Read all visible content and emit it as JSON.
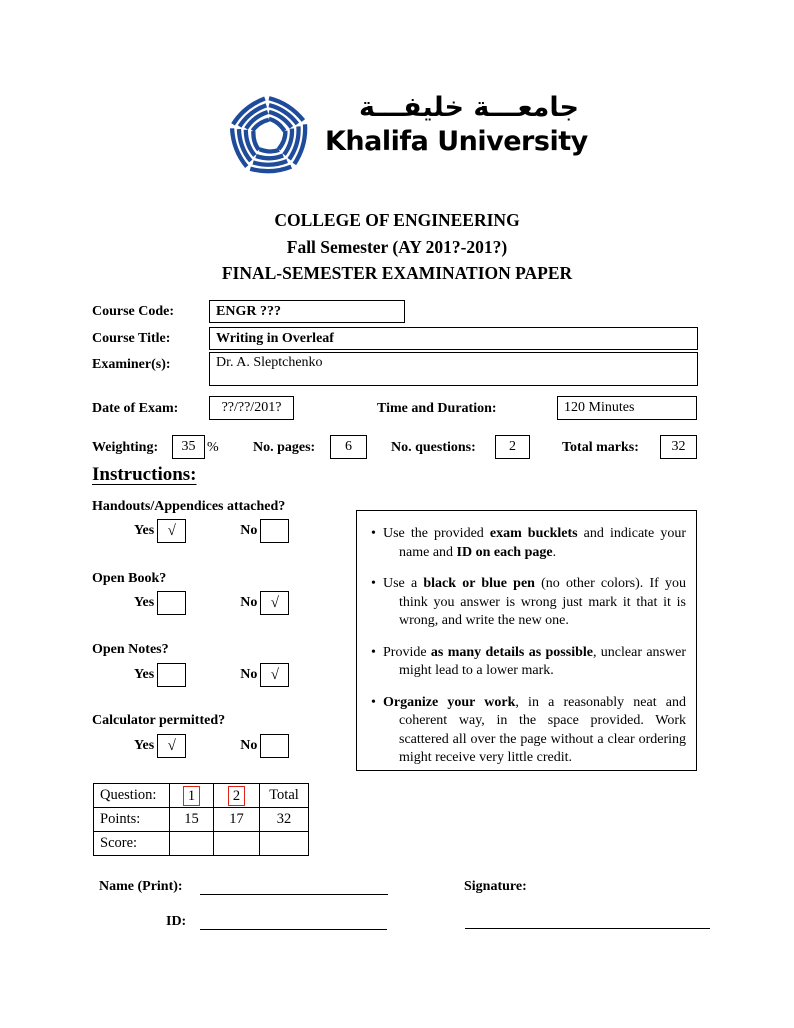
{
  "logo": {
    "arabic": "جامعـــة خليفـــة",
    "english": "Khalifa University",
    "mark_color": "#1e4c9a"
  },
  "title": {
    "line1": "COLLEGE OF ENGINEERING",
    "line2": "Fall Semester (AY 201?-201?)",
    "line3": "FINAL-SEMESTER EXAMINATION PAPER"
  },
  "course": {
    "code_label": "Course Code:",
    "code_value": "ENGR ???",
    "title_label": "Course Title:",
    "title_value": "Writing in Overleaf",
    "examiner_label": "Examiner(s):",
    "examiner_value": "Dr. A. Sleptchenko"
  },
  "exam_info": {
    "date_label": "Date of Exam:",
    "date_value": "??/??/201?",
    "time_label": "Time and Duration:",
    "time_value": "120 Minutes",
    "weighting_label": "Weighting:",
    "weighting_value": "35",
    "weighting_unit": "%",
    "pages_label": "No. pages:",
    "pages_value": "6",
    "questions_label": "No. questions:",
    "questions_value": "2",
    "marks_label": "Total marks:",
    "marks_value": "32"
  },
  "instructions": {
    "heading": "Instructions:",
    "yes_label": "Yes",
    "no_label": "No",
    "questions": [
      {
        "label": "Handouts/Appendices attached?",
        "yes_mark": "√",
        "no_mark": ""
      },
      {
        "label": "Open Book?",
        "yes_mark": "",
        "no_mark": "√"
      },
      {
        "label": "Open Notes?",
        "yes_mark": "",
        "no_mark": "√"
      },
      {
        "label": "Calculator permitted?",
        "yes_mark": "√",
        "no_mark": ""
      }
    ],
    "bullets": [
      [
        {
          "t": "Use the provided "
        },
        {
          "t": "exam bucklets",
          "b": true
        },
        {
          "t": " and indicate your name and "
        },
        {
          "t": "ID on each page",
          "b": true
        },
        {
          "t": "."
        }
      ],
      [
        {
          "t": "Use a "
        },
        {
          "t": "black or blue pen",
          "b": true
        },
        {
          "t": " (no other colors). If you think you answer is wrong just mark it that it is wrong, and write the new one."
        }
      ],
      [
        {
          "t": "Provide "
        },
        {
          "t": "as many details as possible",
          "b": true
        },
        {
          "t": ", unclear answer might lead to a lower mark."
        }
      ],
      [
        {
          "t": "Organize your work",
          "b": true
        },
        {
          "t": ", in a reasonably neat and coherent way, in the space provided. Work scattered all over the page without a clear ordering might receive very little credit."
        }
      ]
    ]
  },
  "score_table": {
    "header": [
      "Question:",
      "1",
      "2",
      "Total"
    ],
    "points_row": [
      "Points:",
      "15",
      "17",
      "32"
    ],
    "score_row": [
      "Score:",
      "",
      "",
      ""
    ],
    "link_color": "#e0241c"
  },
  "signature": {
    "name_label": "Name (Print):",
    "signature_label": "Signature:",
    "id_label": "ID:"
  }
}
